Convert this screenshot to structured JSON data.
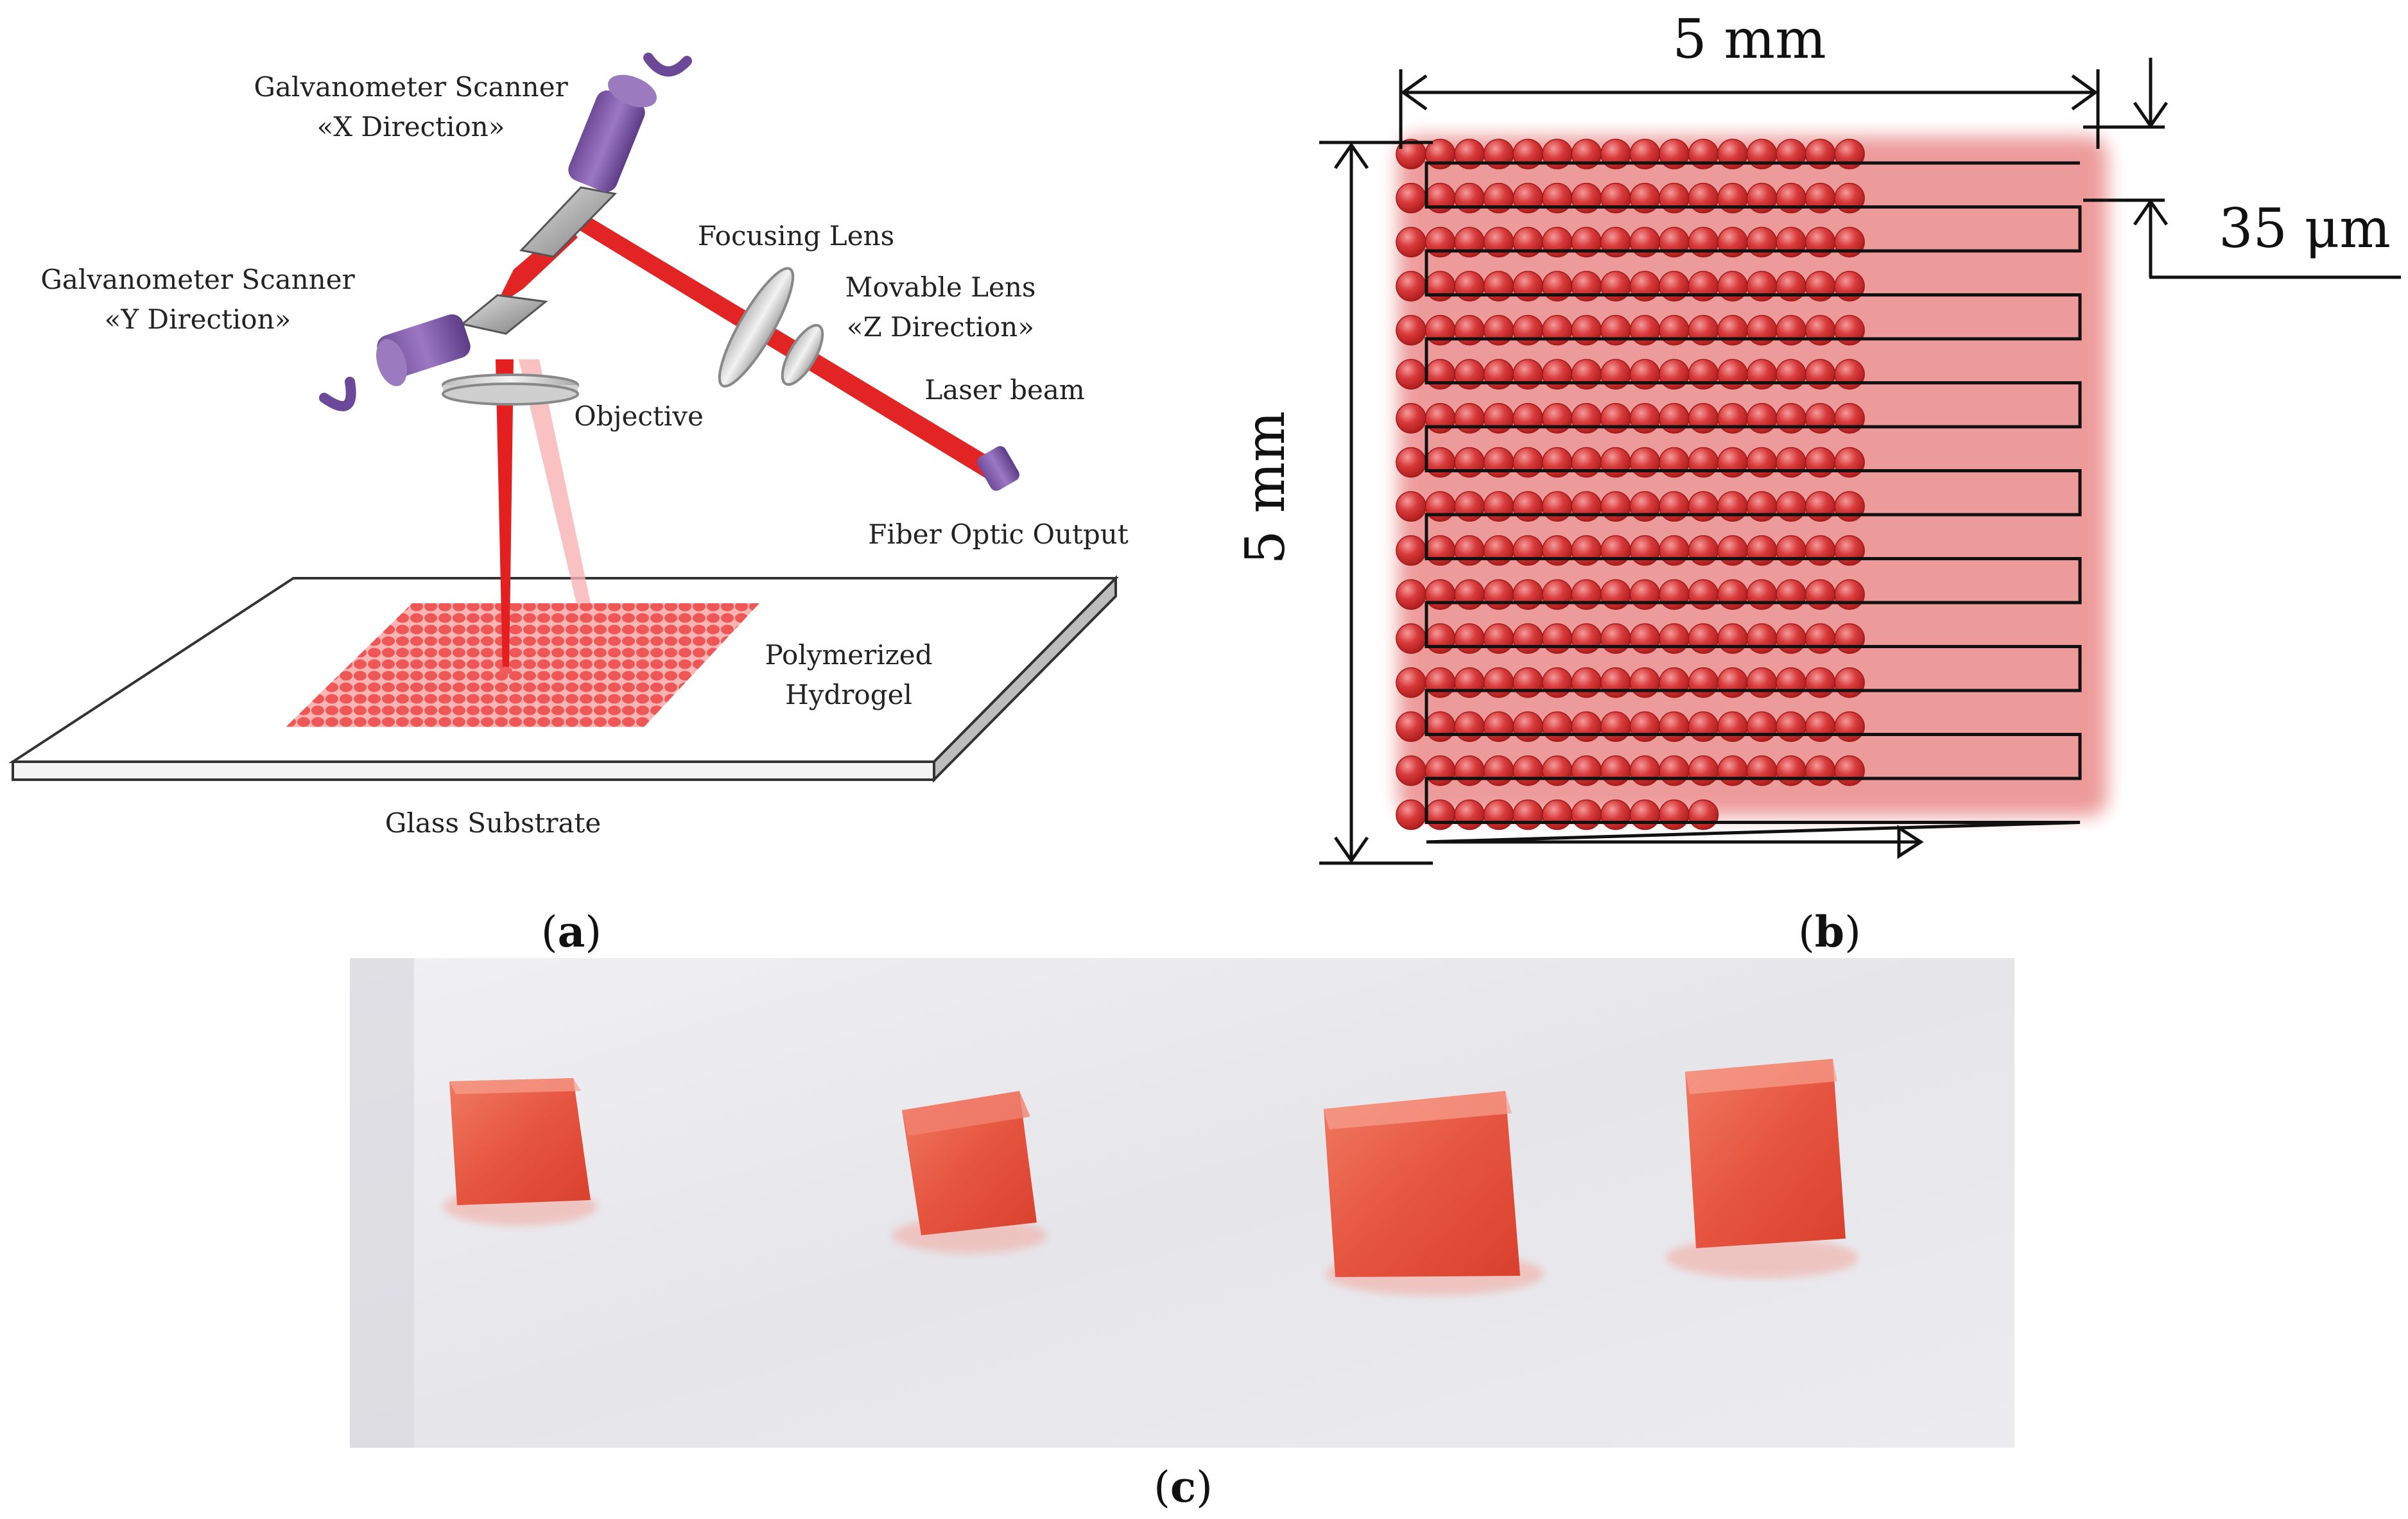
{
  "panel_a": {
    "labels": {
      "scanner_x_line1": "Galvanometer Scanner",
      "scanner_x_line2": "«X Direction»",
      "scanner_y_line1": "Galvanometer Scanner",
      "scanner_y_line2": "«Y Direction»",
      "focusing_lens": "Focusing Lens",
      "movable_lens_line1": "Movable Lens",
      "movable_lens_line2": "«Z Direction»",
      "objective": "Objective",
      "laser_beam": "Laser beam",
      "fiber_optic_output": "Fiber Optic Output",
      "hydrogel_line1": "Polymerized",
      "hydrogel_line2": "Hydrogel",
      "glass_substrate": "Glass Substrate"
    },
    "caption_letter": "a"
  },
  "panel_b": {
    "width_label": "5 mm",
    "height_label": "5 mm",
    "spacing_label": "35 μm",
    "colors": {
      "dot": "#d63333",
      "glow": "#e04848",
      "path": "#111111"
    },
    "caption_letter": "b"
  },
  "panel_c": {
    "samples": 4,
    "colors": {
      "sample": "#e8604a",
      "background": "#e9e9ee"
    },
    "caption_letter": "c"
  }
}
